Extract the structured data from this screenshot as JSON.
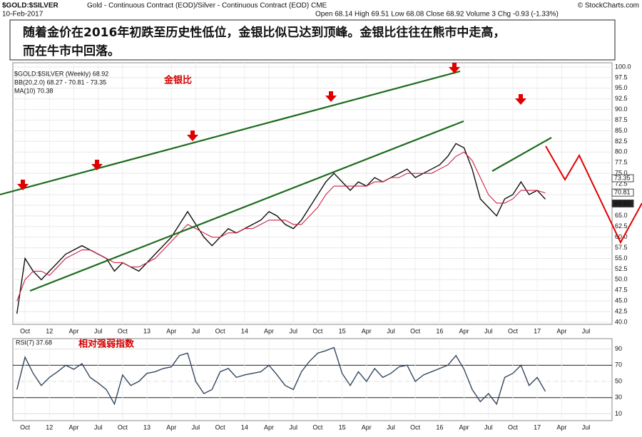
{
  "header": {
    "symbol": "$GOLD:$SILVER",
    "description": "Gold - Continuous Contract (EOD)/Silver - Continuous Contract (EOD) CME",
    "date": "10-Feb-2017",
    "quote": "Open 68.14 High 69.51 Low 68.08 Close 68.92 Volume 3 Chg -0.93 (-1.33%)",
    "credit": "© StockCharts.com"
  },
  "caption": [
    "随着金价在2016年初跌至历史性低位，金银比似已达到顶峰。金银比往往在熊市中走高，",
    "而在牛市中回落。"
  ],
  "chart_data": [
    {
      "type": "line",
      "label": "金银比",
      "bb_legend": "BB(20,2.0) 68.27 - 70.81 - 73.35",
      "price_tags": [
        73.35,
        70.81,
        68.92
      ],
      "x": [
        -1,
        0,
        1,
        2,
        3,
        4,
        5,
        6,
        7,
        8,
        9,
        10,
        11,
        12,
        13,
        14,
        15,
        16,
        17,
        18,
        19,
        20,
        21,
        22,
        23,
        24,
        25,
        26,
        27,
        28,
        29,
        30,
        31,
        32,
        33,
        34,
        35,
        36,
        37,
        38,
        39,
        40,
        41,
        42,
        43,
        44,
        45,
        46,
        47,
        48,
        49,
        50,
        51,
        52,
        53,
        54,
        55,
        56,
        57,
        58,
        59,
        60,
        61,
        62,
        63,
        64
      ],
      "series": [
        {
          "name": "$GOLD:$SILVER (Weekly) 68.92",
          "color": "#111111",
          "values": [
            42,
            55,
            52,
            50,
            52,
            54,
            56,
            57,
            58,
            57,
            56,
            55,
            52,
            54,
            53,
            52,
            54,
            56,
            58,
            60,
            63,
            66,
            63,
            60,
            58,
            60,
            62,
            61,
            62,
            63,
            64,
            66,
            65,
            63,
            62,
            64,
            67,
            70,
            73,
            75,
            73,
            71,
            73,
            72,
            74,
            73,
            74,
            75,
            76,
            74,
            75,
            76,
            77,
            79,
            82,
            81,
            76,
            69,
            67,
            65,
            69,
            70,
            73,
            70,
            71,
            68.92
          ]
        },
        {
          "name": "MA(10) 70.38",
          "color": "#cc2244",
          "values": [
            45,
            50,
            52,
            52,
            51,
            53,
            55,
            56,
            57,
            57,
            56,
            55,
            54,
            54,
            53,
            53,
            54,
            55,
            57,
            59,
            61,
            63,
            62,
            61,
            60,
            60,
            61,
            61,
            62,
            62,
            63,
            64,
            64,
            64,
            63,
            63,
            65,
            67,
            70,
            72,
            72,
            72,
            72,
            72,
            73,
            73,
            74,
            74,
            75,
            75,
            75,
            75,
            76,
            77,
            79,
            80,
            78,
            74,
            70,
            68,
            68,
            69,
            71,
            71,
            71,
            70.38
          ]
        }
      ],
      "xlim": [
        -1.5,
        72.2
      ],
      "xticks": [
        {
          "value": 0,
          "label": "Oct"
        },
        {
          "value": 3,
          "label": "12"
        },
        {
          "value": 6,
          "label": "Apr"
        },
        {
          "value": 9,
          "label": "Jul"
        },
        {
          "value": 12,
          "label": "Oct"
        },
        {
          "value": 15,
          "label": "13"
        },
        {
          "value": 18,
          "label": "Apr"
        },
        {
          "value": 21,
          "label": "Jul"
        },
        {
          "value": 24,
          "label": "Oct"
        },
        {
          "value": 27,
          "label": "14"
        },
        {
          "value": 30,
          "label": "Apr"
        },
        {
          "value": 33,
          "label": "Jul"
        },
        {
          "value": 36,
          "label": "Oct"
        },
        {
          "value": 39,
          "label": "15"
        },
        {
          "value": 42,
          "label": "Apr"
        },
        {
          "value": 45,
          "label": "Jul"
        },
        {
          "value": 48,
          "label": "Oct"
        },
        {
          "value": 51,
          "label": "16"
        },
        {
          "value": 54,
          "label": "Apr"
        },
        {
          "value": 57,
          "label": "Jul"
        },
        {
          "value": 60,
          "label": "Oct"
        },
        {
          "value": 63,
          "label": "17"
        },
        {
          "value": 66,
          "label": "Apr"
        },
        {
          "value": 69,
          "label": "Jul"
        }
      ],
      "ylim": [
        39.5,
        101
      ],
      "yticks": [
        {
          "value": 40,
          "label": "40.0"
        },
        42.5,
        {
          "value": 45,
          "label": "45.0"
        },
        47.5,
        {
          "value": 50,
          "label": "50.0"
        },
        52.5,
        {
          "value": 55,
          "label": "55.0"
        },
        57.5,
        {
          "value": 60,
          "label": "60.0"
        },
        62.5,
        {
          "value": 65,
          "label": "65.0"
        },
        67.5,
        {
          "value": 70,
          "label": "70.0"
        },
        72.5,
        {
          "value": 75,
          "label": "75.0"
        },
        77.5,
        {
          "value": 80,
          "label": "80.0"
        },
        82.5,
        {
          "value": 85,
          "label": "85.0"
        },
        87.5,
        {
          "value": 90,
          "label": "90.0"
        },
        92.5,
        {
          "value": 95,
          "label": "95.0"
        },
        97.5,
        {
          "value": 100,
          "label": "100.0"
        }
      ]
    },
    {
      "type": "line",
      "label": "相对强弱指数",
      "x": [
        -1,
        0,
        1,
        2,
        3,
        4,
        5,
        6,
        7,
        8,
        9,
        10,
        11,
        12,
        13,
        14,
        15,
        16,
        17,
        18,
        19,
        20,
        21,
        22,
        23,
        24,
        25,
        26,
        27,
        28,
        29,
        30,
        31,
        32,
        33,
        34,
        35,
        36,
        37,
        38,
        39,
        40,
        41,
        42,
        43,
        44,
        45,
        46,
        47,
        48,
        49,
        50,
        51,
        52,
        53,
        54,
        55,
        56,
        57,
        58,
        59,
        60,
        61,
        62,
        63,
        64
      ],
      "series": [
        {
          "name": "RSI(7) 37.68",
          "color": "#33475e",
          "values": [
            40,
            80,
            60,
            45,
            55,
            62,
            70,
            65,
            72,
            55,
            48,
            40,
            22,
            58,
            45,
            50,
            60,
            62,
            66,
            68,
            82,
            85,
            50,
            35,
            40,
            62,
            66,
            55,
            58,
            60,
            62,
            70,
            58,
            45,
            40,
            62,
            75,
            85,
            88,
            92,
            60,
            45,
            62,
            50,
            66,
            55,
            60,
            68,
            70,
            50,
            58,
            62,
            66,
            70,
            82,
            65,
            40,
            25,
            35,
            22,
            55,
            60,
            70,
            45,
            55,
            37.68
          ]
        }
      ],
      "xlim": [
        -1.5,
        72.2
      ],
      "ylim": [
        1.6,
        102.9
      ],
      "yticks": [
        10,
        30,
        50,
        70,
        90
      ]
    }
  ]
}
